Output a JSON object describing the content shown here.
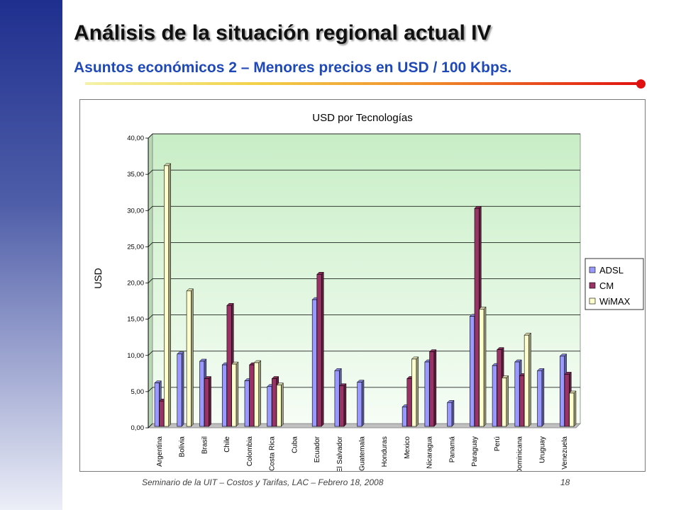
{
  "slide": {
    "title": "Análisis de la situación regional actual IV",
    "subtitle": "Asuntos económicos 2 – Menores precios en USD / 100 Kbps.",
    "footer": "Seminario de la UIT – Costos y Tarifas, LAC – Febrero 18, 2008",
    "page_number": "18"
  },
  "chart_data": {
    "type": "bar",
    "title": "USD por Tecnologías",
    "xlabel": "",
    "ylabel": "USD",
    "ylim": [
      0,
      40
    ],
    "yticks": [
      0,
      5,
      10,
      15,
      20,
      25,
      30,
      35,
      40
    ],
    "ytick_labels": [
      "0,00",
      "5,00",
      "10,00",
      "15,00",
      "20,00",
      "25,00",
      "30,00",
      "35,00",
      "40,00"
    ],
    "grid": true,
    "legend_position": "right",
    "categories": [
      "Argentina",
      "Bolivia",
      "Brasil",
      "Chile",
      "Colombia",
      "Costa Rica",
      "Cuba",
      "Ecuador",
      "El Salvador",
      "Guatemala",
      "Honduras",
      "Mexico",
      "Nicaragua",
      "Panamá",
      "Paraguay",
      "Perú",
      "Dominicana",
      "Uruguay",
      "Venezuela"
    ],
    "series": [
      {
        "name": "ADSL",
        "color": "#9999ff",
        "values": [
          6.0,
          10.0,
          9.0,
          8.5,
          6.3,
          5.5,
          0,
          17.5,
          7.7,
          6.1,
          0,
          2.7,
          8.9,
          3.3,
          15.2,
          8.4,
          8.9,
          7.7,
          9.7
        ]
      },
      {
        "name": "CM",
        "color": "#993366",
        "values": [
          3.5,
          0,
          6.6,
          16.7,
          8.5,
          6.6,
          0,
          21.0,
          5.6,
          0,
          0,
          6.6,
          10.3,
          0,
          30.1,
          10.6,
          7.0,
          0,
          7.2
        ]
      },
      {
        "name": "WiMAX",
        "color": "#ffffcc",
        "values": [
          36.0,
          18.7,
          0,
          8.6,
          8.8,
          5.7,
          0,
          0,
          0,
          0,
          0,
          9.3,
          0,
          0,
          16.2,
          6.7,
          12.6,
          0,
          4.6
        ]
      }
    ]
  }
}
